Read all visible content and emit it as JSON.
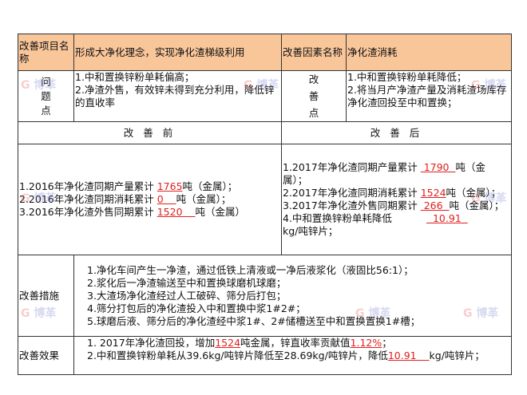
{
  "header": {
    "project_label": "改善项目名称",
    "project_value": "形成大净化理念，实现净化渣梯级利用",
    "factor_label": "改善因素名称",
    "factor_value": "净化渣消耗"
  },
  "problem": {
    "label": "问题点",
    "lines": [
      "1.中和置换锌粉单耗偏高；",
      "2.净渣外售，有效锌未得到充分利用，降低锌的直收率"
    ]
  },
  "improvement_point": {
    "label": "改善点",
    "lines": [
      "1.中和置换锌粉单耗降低；",
      "2.将当月产净渣产量及消耗渣场库存净化渣回投至中和置换；"
    ]
  },
  "before": {
    "title": "改 善 前",
    "items": [
      {
        "prefix": "1.2016年净化渣同期产量累计 ",
        "value": "1765",
        "suffix": "吨（金属）；"
      },
      {
        "prefix": "2.2016年净化渣同期消耗累计 ",
        "value": "0    ",
        "suffix": "吨（金属）；"
      },
      {
        "prefix": "3.2016年净化渣外售同期累计 ",
        "value": "1520    ",
        "suffix": "吨（金属）"
      }
    ]
  },
  "after": {
    "title": "改 善 后",
    "items": [
      {
        "prefix": "1.2017年净化渣同期产量累计 ",
        "value": " 1790  ",
        "suffix": "吨（金属）；"
      },
      {
        "prefix": "2.2017年净化渣同期消耗累计 ",
        "value": "1524",
        "suffix": "吨（金属）；"
      },
      {
        "prefix": "3.2017年净化渣外售同期累计 ",
        "value": " 266  ",
        "suffix": "吨（金属）；"
      },
      {
        "prefix": "4.中和置换锌粉单耗降低 ",
        "value": "  10.91  ",
        "suffix": "kg/吨锌片；"
      }
    ]
  },
  "measures": {
    "label": "改善措施",
    "lines": [
      "1.净化车间产生一净渣，通过低铁上清液或一净后液浆化（液固比56:1）；",
      "2.浆化后一净渣输送至中和置换球磨机球磨；",
      "3.大渣场净化渣经过人工破碎、筛分后打包；",
      "4.筛分打包后的净化渣投入中和置换中浆1#2#；",
      "5.球磨后液、筛分后的净化渣经中浆1#、2#储槽送至中和置换置换1#槽；"
    ]
  },
  "effect": {
    "label": "改善效果",
    "line1": {
      "a": "1. 2017年净化渣回投，增加",
      "v1": "1524",
      "b": "吨金属，锌直收率贡献值",
      "v2": "1.12%",
      "c": "；"
    },
    "line2": {
      "a": "2.中和置换锌粉单耗从39.6kg/吨锌片降低至28.69kg/吨锌片，降低",
      "v1": "10.91    ",
      "b": "kg/吨锌片；"
    }
  },
  "watermark": "博革",
  "colors": {
    "header_bg": "#f9c69a",
    "highlight": "#e02020"
  }
}
